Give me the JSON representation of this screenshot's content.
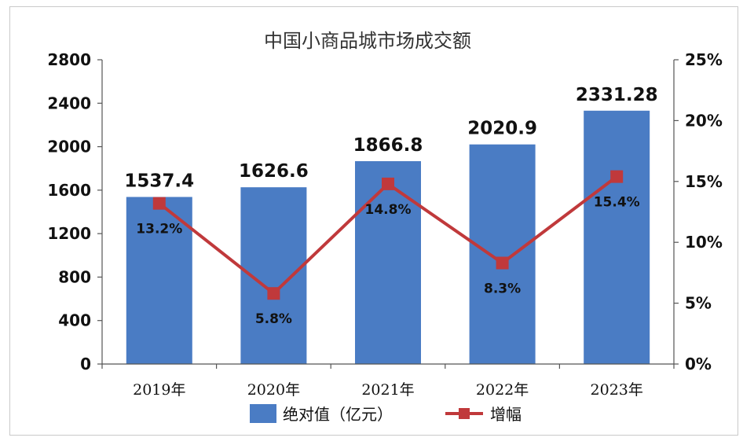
{
  "chart_data": {
    "type": "bar",
    "title": "中国小商品城市场成交额",
    "categories": [
      "2019年",
      "2020年",
      "2021年",
      "2022年",
      "2023年"
    ],
    "series": [
      {
        "name": "绝对值（亿元）",
        "type": "bar",
        "axis": "left",
        "color": "#4a7cc4",
        "values": [
          1537.4,
          1626.6,
          1866.8,
          2020.9,
          2331.28
        ],
        "labels": [
          "1537.4",
          "1626.6",
          "1866.8",
          "2020.9",
          "2331.28"
        ]
      },
      {
        "name": "增幅",
        "type": "line",
        "axis": "right",
        "color": "#c0393b",
        "values": [
          13.2,
          5.8,
          14.8,
          8.3,
          15.4
        ],
        "labels": [
          "13.2%",
          "5.8%",
          "14.8%",
          "8.3%",
          "15.4%"
        ]
      }
    ],
    "y_left": {
      "ylim": [
        0,
        2800
      ],
      "ticks": [
        "0",
        "400",
        "800",
        "1200",
        "1600",
        "2000",
        "2400",
        "2800"
      ],
      "tick_values": [
        0,
        400,
        800,
        1200,
        1600,
        2000,
        2400,
        2800
      ]
    },
    "y_right": {
      "ylim": [
        0,
        25
      ],
      "ticks": [
        "0%",
        "5%",
        "10%",
        "15%",
        "20%",
        "25%"
      ],
      "tick_values": [
        0,
        5,
        10,
        15,
        20,
        25
      ]
    },
    "grid": false,
    "legend": "bottom"
  }
}
